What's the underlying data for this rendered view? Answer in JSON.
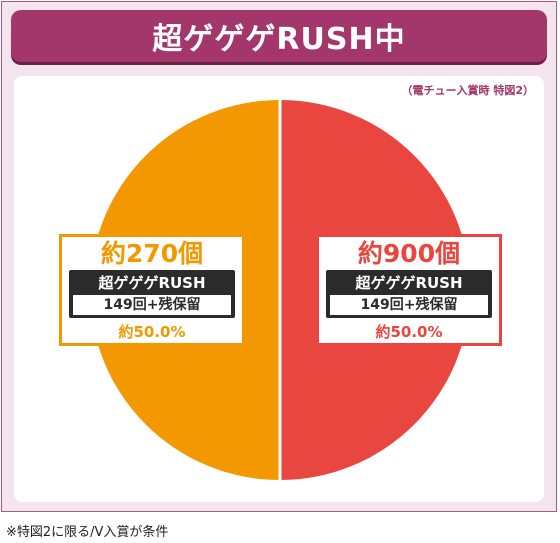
{
  "title": "超ゲゲゲRUSH中",
  "top_note": "（電チュー入賞時 特図2）",
  "footnote": "※特図2に限る/V入賞が条件",
  "chart_data": {
    "type": "pie",
    "title": "超ゲゲゲRUSH中",
    "slices": [
      {
        "name": "約900個",
        "value": 50.0,
        "color": "#e8463e",
        "count_label": "約900個",
        "rush_label": "超ゲゲゲRUSH",
        "sub_label": "149回+残保留",
        "percent_label": "約50.0%"
      },
      {
        "name": "約270個",
        "value": 50.0,
        "color": "#f39800",
        "count_label": "約270個",
        "rush_label": "超ゲゲゲRUSH",
        "sub_label": "149回+残保留",
        "percent_label": "約50.0%"
      }
    ]
  }
}
